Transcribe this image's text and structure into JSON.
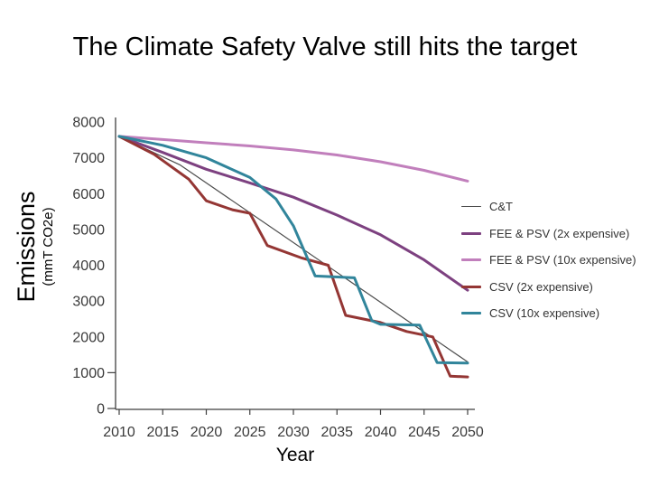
{
  "title": "The Climate Safety Valve still hits the target",
  "y_axis": {
    "title": "Emissions",
    "subtitle": "(mmT CO2e)"
  },
  "x_axis": {
    "title": "Year"
  },
  "colors": {
    "axis": "#3f3f3f",
    "tick_text": "#3a3a3a",
    "background": "#ffffff"
  },
  "chart_data": {
    "type": "line",
    "title": "The Climate Safety Valve still hits the target",
    "xlabel": "Year",
    "ylabel": "Emissions (mmT CO2e)",
    "xlim": [
      2010,
      2050
    ],
    "ylim": [
      0,
      8000
    ],
    "x_ticks": [
      2010,
      2015,
      2020,
      2025,
      2030,
      2035,
      2040,
      2045,
      2050
    ],
    "y_ticks": [
      0,
      1000,
      2000,
      3000,
      4000,
      5000,
      6000,
      7000,
      8000
    ],
    "grid": false,
    "legend_position": "right",
    "series": [
      {
        "name": "C&T",
        "color": "#4d4d4d",
        "width": 1.2,
        "points": [
          [
            2010,
            7600
          ],
          [
            2017,
            6800
          ],
          [
            2050,
            1300
          ]
        ]
      },
      {
        "name": "FEE & PSV (2x expensive)",
        "color": "#7D4180",
        "width": 3,
        "points": [
          [
            2010,
            7600
          ],
          [
            2015,
            7150
          ],
          [
            2020,
            6680
          ],
          [
            2025,
            6300
          ],
          [
            2030,
            5900
          ],
          [
            2035,
            5400
          ],
          [
            2040,
            4850
          ],
          [
            2045,
            4150
          ],
          [
            2050,
            3300
          ]
        ]
      },
      {
        "name": "FEE & PSV (10x expensive)",
        "color": "#C17FBC",
        "width": 3,
        "points": [
          [
            2010,
            7600
          ],
          [
            2015,
            7510
          ],
          [
            2020,
            7420
          ],
          [
            2025,
            7330
          ],
          [
            2030,
            7220
          ],
          [
            2035,
            7080
          ],
          [
            2040,
            6890
          ],
          [
            2045,
            6650
          ],
          [
            2050,
            6350
          ]
        ]
      },
      {
        "name": "CSV (2x expensive)",
        "color": "#943634",
        "width": 3,
        "points": [
          [
            2010,
            7600
          ],
          [
            2014,
            7100
          ],
          [
            2018,
            6400
          ],
          [
            2020,
            5800
          ],
          [
            2023,
            5550
          ],
          [
            2025,
            5450
          ],
          [
            2027,
            4550
          ],
          [
            2031,
            4200
          ],
          [
            2034,
            4000
          ],
          [
            2036,
            2600
          ],
          [
            2040,
            2400
          ],
          [
            2043,
            2150
          ],
          [
            2046,
            2000
          ],
          [
            2048,
            900
          ],
          [
            2050,
            880
          ]
        ]
      },
      {
        "name": "CSV (10x expensive)",
        "color": "#31859B",
        "width": 3,
        "points": [
          [
            2010,
            7600
          ],
          [
            2015,
            7350
          ],
          [
            2020,
            7000
          ],
          [
            2025,
            6450
          ],
          [
            2028,
            5850
          ],
          [
            2030,
            5100
          ],
          [
            2032.5,
            3700
          ],
          [
            2037,
            3650
          ],
          [
            2039,
            2450
          ],
          [
            2040,
            2350
          ],
          [
            2044.5,
            2330
          ],
          [
            2046.5,
            1280
          ],
          [
            2050,
            1270
          ]
        ]
      }
    ]
  }
}
